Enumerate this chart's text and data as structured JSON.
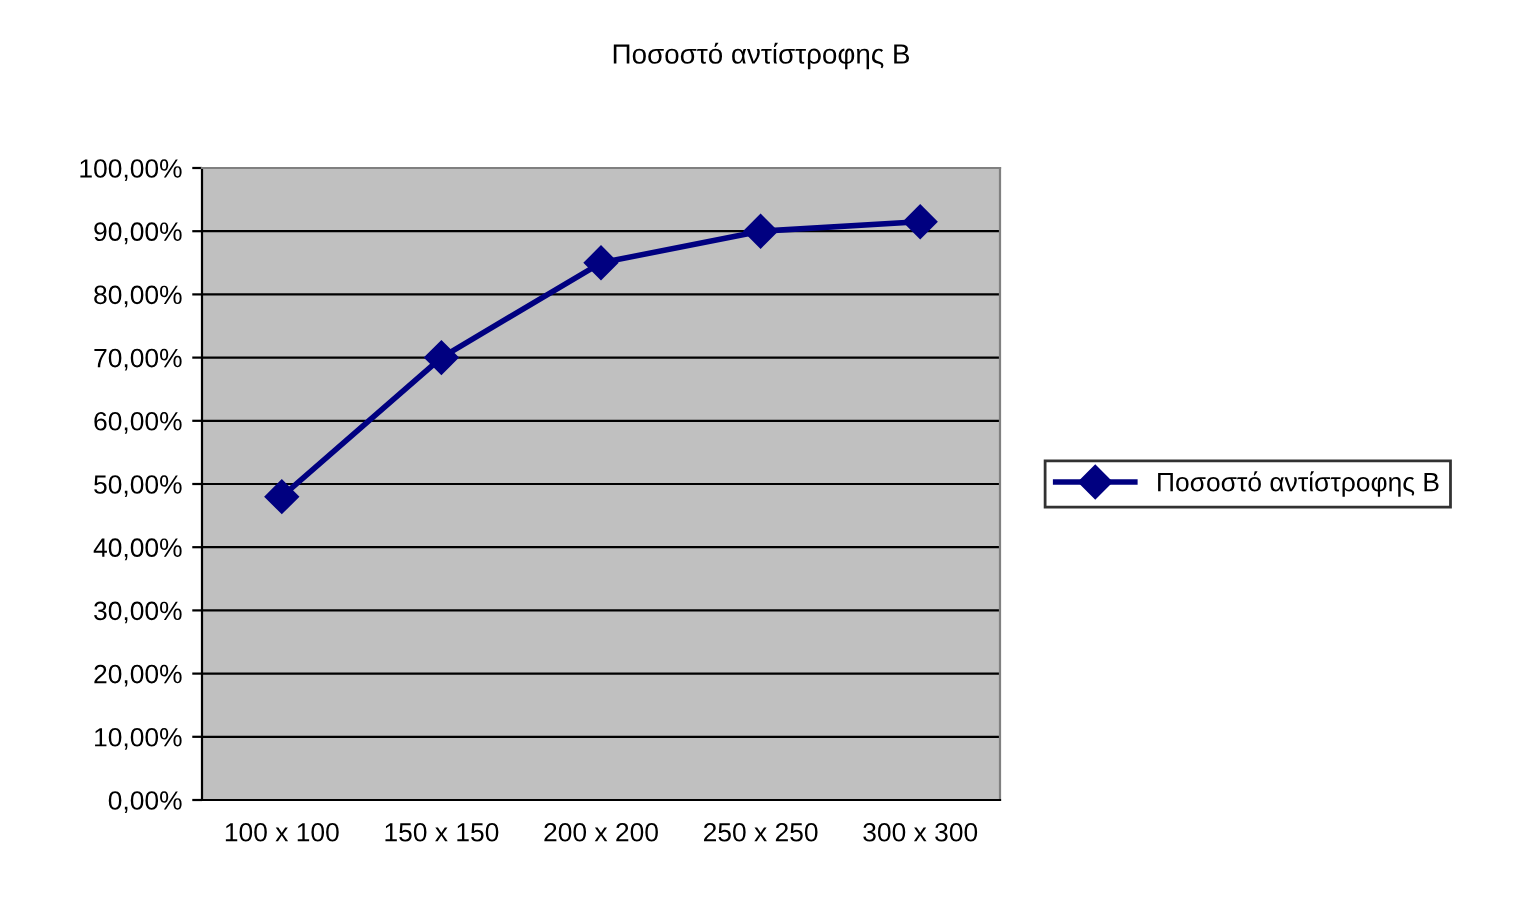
{
  "chart_data": {
    "type": "line",
    "title": "Ποσοστό αντίστροφης Β",
    "categories": [
      "100 x 100",
      "150 x 150",
      "200 x 200",
      "250 x 250",
      "300 x 300"
    ],
    "series": [
      {
        "name": "Ποσοστό αντίστροφης Β",
        "color": "#000080",
        "values": [
          48,
          70,
          85,
          90,
          91.5
        ]
      }
    ],
    "ylim": [
      0,
      100
    ],
    "yticks": [
      {
        "value": 0,
        "label": "0,00%"
      },
      {
        "value": 10,
        "label": "10,00%"
      },
      {
        "value": 20,
        "label": "20,00%"
      },
      {
        "value": 30,
        "label": "30,00%"
      },
      {
        "value": 40,
        "label": "40,00%"
      },
      {
        "value": 50,
        "label": "50,00%"
      },
      {
        "value": 60,
        "label": "60,00%"
      },
      {
        "value": 70,
        "label": "70,00%"
      },
      {
        "value": 80,
        "label": "80,00%"
      },
      {
        "value": 90,
        "label": "90,00%"
      },
      {
        "value": 100,
        "label": "100,00%"
      }
    ],
    "grid": "y",
    "legend": "right",
    "marker": "diamond",
    "line_style": "solid"
  }
}
